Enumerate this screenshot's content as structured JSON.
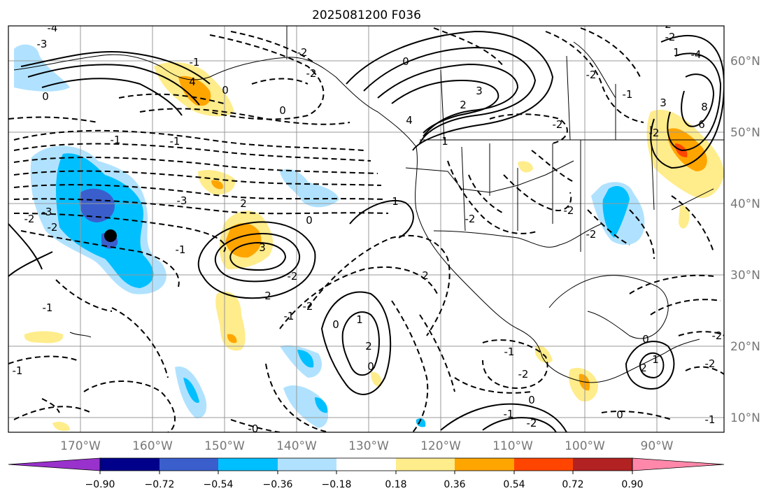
{
  "title": "2025081200 F036",
  "map": {
    "lon_labels": [
      "170°W",
      "160°W",
      "150°W",
      "140°W",
      "130°W",
      "120°W",
      "110°W",
      "100°W",
      "90°W"
    ],
    "lat_labels": [
      "60°N",
      "50°N",
      "40°N",
      "30°N",
      "20°N",
      "10°N"
    ],
    "contour_labels": [
      "-4",
      "-3",
      "0",
      "4",
      "0",
      "-2",
      "0",
      "-2",
      "-1",
      "4",
      "3",
      "2",
      "1",
      "-1",
      "-2",
      "-2",
      "-1",
      "-3",
      "2",
      "-2",
      "0",
      "-3",
      "-2",
      "-1",
      "3",
      "2",
      "-1",
      "-2",
      "1",
      "2",
      "-1",
      "0",
      "2",
      "-2",
      "-2",
      "-2",
      "0",
      "-1",
      "-2",
      "-1",
      "0",
      "1",
      "-2",
      "-1",
      "0",
      "-1",
      "-2",
      "-0",
      "-2",
      "0",
      "1",
      "2",
      "-2",
      "0",
      "-1",
      "1",
      "-2",
      "2",
      "3",
      "-2",
      "6",
      "8",
      "-4"
    ],
    "marker": "black circle"
  },
  "colorbar": {
    "tick_labels": [
      "−0.90",
      "−0.72",
      "−0.54",
      "−0.36",
      "−0.18",
      "0.18",
      "0.36",
      "0.54",
      "0.72",
      "0.90"
    ],
    "colors": [
      "#9932cc",
      "#00008b",
      "#3a5fcd",
      "#00bfff",
      "#b0e2ff",
      "#ffffff",
      "#ffec8b",
      "#ffa500",
      "#ff4500",
      "#b22222",
      "#ff88aa"
    ]
  }
}
